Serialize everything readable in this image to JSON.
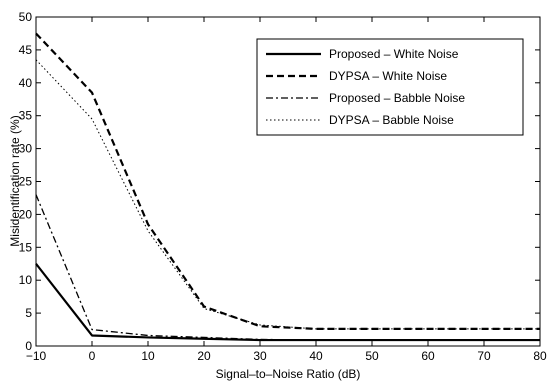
{
  "chart_data": {
    "type": "line",
    "title": "",
    "xlabel": "Signal–to–Noise Ratio (dB)",
    "ylabel": "Misidentification rate (%)",
    "xlim": [
      -10,
      80
    ],
    "ylim": [
      0,
      50
    ],
    "xticks": [
      -10,
      0,
      10,
      20,
      30,
      40,
      50,
      60,
      70,
      80
    ],
    "yticks": [
      0,
      5,
      10,
      15,
      20,
      25,
      30,
      35,
      40,
      45,
      50
    ],
    "grid": false,
    "legend_position": "top-right",
    "x": [
      -10,
      0,
      10,
      20,
      30,
      40,
      50,
      60,
      70,
      80
    ],
    "series": [
      {
        "name": "Proposed – White Noise",
        "style": "solid",
        "values": [
          12.5,
          1.6,
          1.3,
          1.1,
          0.9,
          0.9,
          0.9,
          0.9,
          0.9,
          0.9
        ]
      },
      {
        "name": "DYPSA – White Noise",
        "style": "dashed",
        "values": [
          47.5,
          38.5,
          18.5,
          6.0,
          3.0,
          2.6,
          2.6,
          2.6,
          2.6,
          2.6
        ]
      },
      {
        "name": "Proposed – Babble Noise",
        "style": "dashdot",
        "values": [
          23.0,
          2.5,
          1.6,
          1.3,
          1.0,
          0.9,
          0.9,
          0.9,
          0.9,
          0.9
        ]
      },
      {
        "name": "DYPSA – Babble Noise",
        "style": "dotted",
        "values": [
          43.5,
          34.5,
          17.5,
          5.7,
          3.2,
          2.6,
          2.6,
          2.6,
          2.6,
          2.6
        ]
      }
    ]
  }
}
